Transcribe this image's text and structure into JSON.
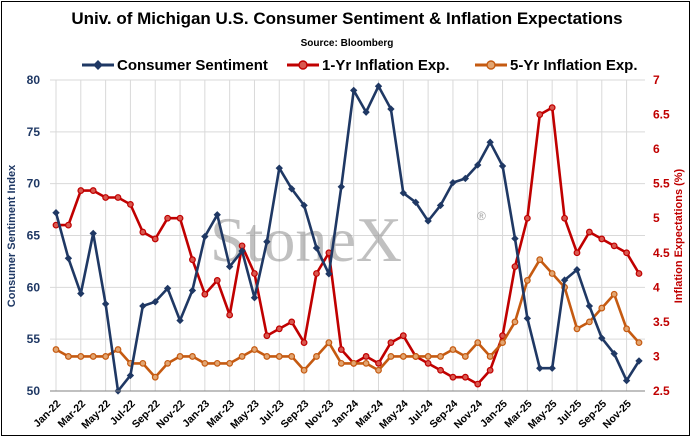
{
  "chart_data": {
    "type": "line",
    "title": "Univ. of Michigan U.S. Consumer Sentiment & Inflation Expectations",
    "subtitle": "Source: Bloomberg",
    "watermark": "StoneX",
    "ylabel_left": "Consumer Sentiment Index",
    "ylabel_right": "Inflation Expectations (%)",
    "ylim_left": [
      50,
      80
    ],
    "yticks_left": [
      "50",
      "55",
      "60",
      "65",
      "70",
      "75",
      "80"
    ],
    "ylim_right": [
      2.5,
      7
    ],
    "yticks_right": [
      "2.5",
      "3",
      "3.5",
      "4",
      "4.5",
      "5",
      "5.5",
      "6",
      "6.5",
      "7"
    ],
    "xtick_labels": [
      "Jan-22",
      "Mar-22",
      "May-22",
      "Jul-22",
      "Sep-22",
      "Nov-22",
      "Jan-23",
      "Mar-23",
      "May-23",
      "Jul-23",
      "Sep-23",
      "Nov-23",
      "Jan-24",
      "Mar-24",
      "May-24",
      "Jul-24",
      "Sep-24",
      "Nov-24",
      "Jan-25",
      "Mar-25",
      "May-25",
      "Jul-25",
      "Sep-25",
      "Nov-25"
    ],
    "x": [
      "Jan-22",
      "Feb-22",
      "Mar-22",
      "Apr-22",
      "May-22",
      "Jun-22",
      "Jul-22",
      "Aug-22",
      "Sep-22",
      "Oct-22",
      "Nov-22",
      "Dec-22",
      "Jan-23",
      "Feb-23",
      "Mar-23",
      "Apr-23",
      "May-23",
      "Jun-23",
      "Jul-23",
      "Aug-23",
      "Sep-23",
      "Oct-23",
      "Nov-23",
      "Dec-23",
      "Jan-24",
      "Feb-24",
      "Mar-24",
      "Apr-24",
      "May-24",
      "Jun-24",
      "Jul-24",
      "Aug-24",
      "Sep-24",
      "Oct-24",
      "Nov-24",
      "Dec-24",
      "Jan-25",
      "Feb-25",
      "Mar-25",
      "Apr-25",
      "May-25",
      "Jun-25",
      "Jul-25",
      "Aug-25",
      "Sep-25",
      "Oct-25",
      "Nov-25",
      "Dec-25"
    ],
    "grid": true,
    "legend_position": "top",
    "series": [
      {
        "name": "Consumer Sentiment",
        "axis": "left",
        "color": "#1f3864",
        "values": [
          67.2,
          62.8,
          59.4,
          65.2,
          58.4,
          50.0,
          51.5,
          58.2,
          58.6,
          59.9,
          56.8,
          59.7,
          64.9,
          67.0,
          62.0,
          63.5,
          59.0,
          64.4,
          71.5,
          69.5,
          67.9,
          63.8,
          61.3,
          69.7,
          79.0,
          76.9,
          79.4,
          77.2,
          69.1,
          68.2,
          66.4,
          67.9,
          70.1,
          70.5,
          71.8,
          74.0,
          71.7,
          64.7,
          57.0,
          52.2,
          52.2,
          60.7,
          61.7,
          58.2,
          55.1,
          53.6,
          51.0,
          52.9
        ]
      },
      {
        "name": "1-Yr Inflation Exp.",
        "axis": "right",
        "color": "#c00000",
        "values": [
          4.9,
          4.9,
          5.4,
          5.4,
          5.3,
          5.3,
          5.2,
          4.8,
          4.7,
          5.0,
          5.0,
          4.4,
          3.9,
          4.1,
          3.6,
          4.6,
          4.2,
          3.3,
          3.4,
          3.5,
          3.2,
          4.2,
          4.5,
          3.1,
          2.9,
          3.0,
          2.9,
          3.2,
          3.3,
          3.0,
          2.9,
          2.8,
          2.7,
          2.7,
          2.6,
          2.8,
          3.3,
          4.3,
          5.0,
          6.5,
          6.6,
          5.0,
          4.5,
          4.8,
          4.7,
          4.6,
          4.5,
          4.2
        ]
      },
      {
        "name": "5-Yr Inflation Exp.",
        "axis": "right",
        "color": "#c55a11",
        "values": [
          3.1,
          3.0,
          3.0,
          3.0,
          3.0,
          3.1,
          2.9,
          2.9,
          2.7,
          2.9,
          3.0,
          3.0,
          2.9,
          2.9,
          2.9,
          3.0,
          3.1,
          3.0,
          3.0,
          3.0,
          2.8,
          3.0,
          3.2,
          2.9,
          2.9,
          2.9,
          2.8,
          3.0,
          3.0,
          3.0,
          3.0,
          3.0,
          3.1,
          3.0,
          3.2,
          3.0,
          3.2,
          3.5,
          4.1,
          4.4,
          4.2,
          4.0,
          3.4,
          3.5,
          3.7,
          3.9,
          3.4,
          3.2
        ]
      }
    ]
  }
}
